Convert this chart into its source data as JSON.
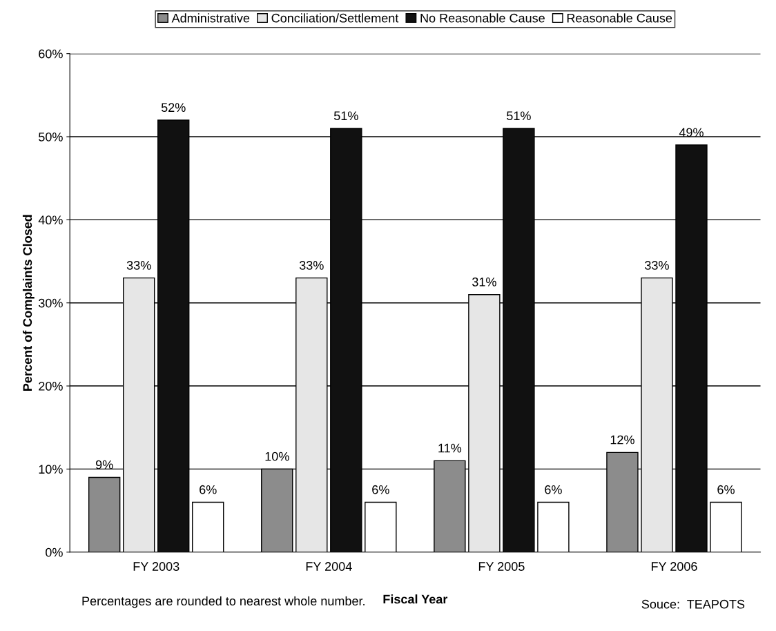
{
  "chart_data": {
    "type": "bar",
    "xlabel": "Fiscal Year",
    "ylabel": "Percent of Complaints Closed",
    "categories": [
      "FY 2003",
      "FY 2004",
      "FY 2005",
      "FY 2006"
    ],
    "series": [
      {
        "name": "Administrative",
        "color": "#8c8c8c",
        "values": [
          9,
          10,
          11,
          12
        ],
        "value_labels": [
          "9%",
          "10%",
          "11%",
          "12%"
        ]
      },
      {
        "name": "Conciliation/Settlement",
        "color": "#e6e6e6",
        "values": [
          33,
          33,
          31,
          33
        ],
        "value_labels": [
          "33%",
          "33%",
          "31%",
          "33%"
        ]
      },
      {
        "name": "No Reasonable Cause",
        "color": "#111111",
        "values": [
          52,
          51,
          51,
          49
        ],
        "value_labels": [
          "52%",
          "51%",
          "51%",
          "49%"
        ]
      },
      {
        "name": "Reasonable Cause",
        "color": "#ffffff",
        "values": [
          6,
          6,
          6,
          6
        ],
        "value_labels": [
          "6%",
          "6%",
          "6%",
          "6%"
        ]
      }
    ],
    "ylim": [
      0,
      60
    ],
    "yticks": [
      {
        "value": 0,
        "label": "0%"
      },
      {
        "value": 10,
        "label": "10%"
      },
      {
        "value": 20,
        "label": "20%"
      },
      {
        "value": 30,
        "label": "30%"
      },
      {
        "value": 40,
        "label": "40%"
      },
      {
        "value": 50,
        "label": "50%"
      },
      {
        "value": 60,
        "label": "60%"
      }
    ],
    "grid": "y",
    "legend": "top",
    "annotations": [
      "Percentages are rounded to nearest whole number.",
      "Souce:  TEAPOTS"
    ]
  }
}
